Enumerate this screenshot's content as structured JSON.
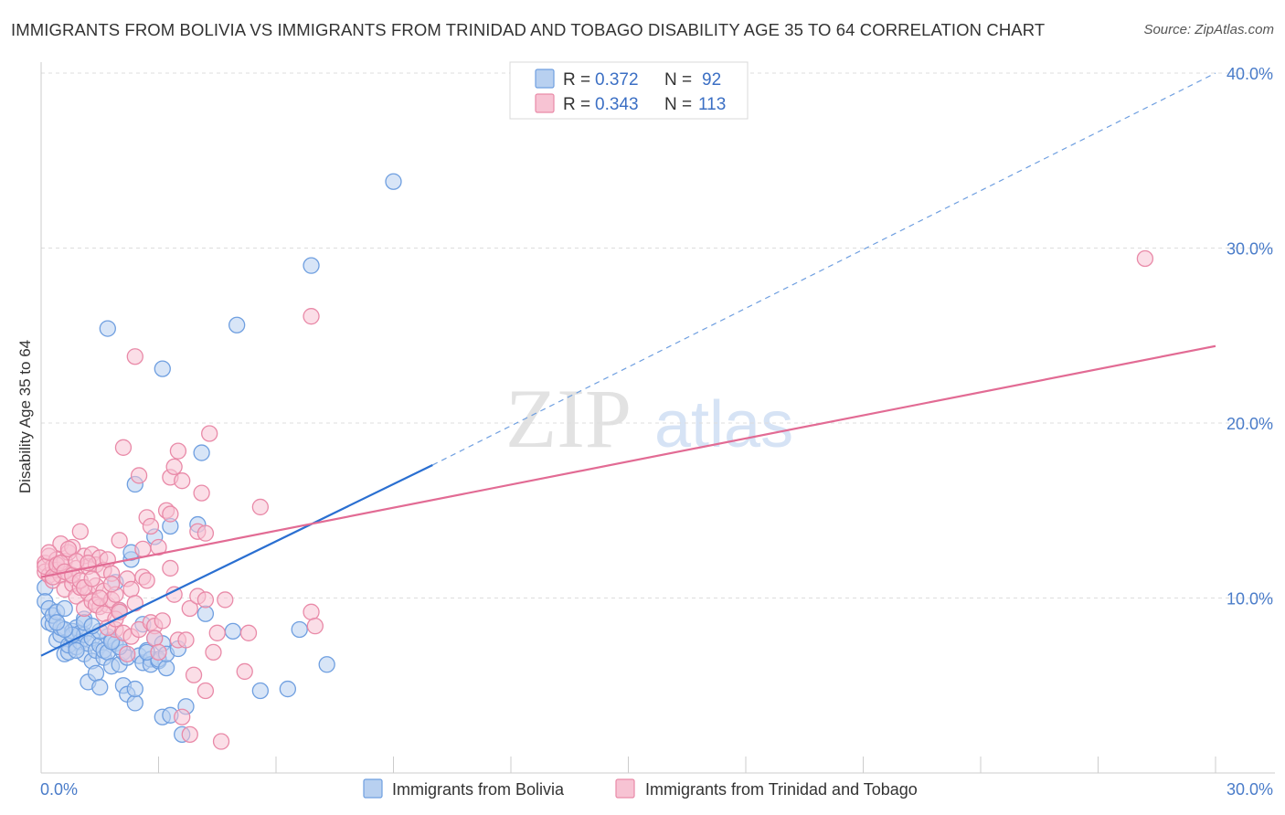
{
  "title": "IMMIGRANTS FROM BOLIVIA VS IMMIGRANTS FROM TRINIDAD AND TOBAGO DISABILITY AGE 35 TO 64 CORRELATION CHART",
  "source": "Source: ZipAtlas.com",
  "watermark": {
    "zip": "ZIP",
    "atlas": "atlas"
  },
  "colors": {
    "blue_fill": "#b8d0f0",
    "blue_stroke": "#6f9fe0",
    "blue_line": "#2a6fd1",
    "pink_fill": "#f7c3d3",
    "pink_stroke": "#e98aa8",
    "pink_line": "#e26b94",
    "grid": "#dddddd",
    "axis_label": "#4a7cc9"
  },
  "legend": {
    "series": [
      {
        "r_label": "R =",
        "r_value": "0.372",
        "n_label": "N =",
        "n_value": "92"
      },
      {
        "r_label": "R =",
        "r_value": "0.343",
        "n_label": "N =",
        "n_value": "113"
      }
    ]
  },
  "chart_data": {
    "type": "scatter",
    "title": "IMMIGRANTS FROM BOLIVIA VS IMMIGRANTS FROM TRINIDAD AND TOBAGO DISABILITY AGE 35 TO 64 CORRELATION CHART",
    "xlabel": "",
    "ylabel": "Disability Age 35 to 64",
    "xlim": [
      0,
      30
    ],
    "ylim": [
      0,
      40
    ],
    "x_tick_labels": [
      {
        "value": 0,
        "label": "0.0%"
      },
      {
        "value": 30,
        "label": "30.0%"
      }
    ],
    "y_tick_labels": [
      {
        "value": 10,
        "label": "10.0%"
      },
      {
        "value": 20,
        "label": "20.0%"
      },
      {
        "value": 30,
        "label": "30.0%"
      },
      {
        "value": 40,
        "label": "40.0%"
      }
    ],
    "grid": true,
    "legend_position": "top-center",
    "series": [
      {
        "name": "Immigrants from Bolivia",
        "r": 0.372,
        "n": 92,
        "trend": {
          "x0": 0,
          "y0": 6.7,
          "x1": 10,
          "y1": 17.6,
          "dashed_to_x": 30,
          "dashed_to_y": 40
        },
        "points": [
          [
            0.1,
            10.6
          ],
          [
            0.1,
            9.8
          ],
          [
            0.2,
            9.4
          ],
          [
            0.2,
            8.6
          ],
          [
            0.3,
            8.5
          ],
          [
            0.3,
            9.0
          ],
          [
            0.4,
            7.6
          ],
          [
            0.4,
            9.2
          ],
          [
            0.5,
            7.9
          ],
          [
            0.5,
            8.3
          ],
          [
            0.6,
            9.4
          ],
          [
            0.6,
            6.8
          ],
          [
            0.7,
            6.9
          ],
          [
            0.7,
            7.3
          ],
          [
            0.8,
            7.8
          ],
          [
            0.8,
            8.1
          ],
          [
            0.9,
            8.3
          ],
          [
            0.9,
            7.2
          ],
          [
            1.0,
            8.0
          ],
          [
            1.0,
            7.5
          ],
          [
            1.1,
            6.8
          ],
          [
            1.1,
            7.9
          ],
          [
            1.1,
            8.8
          ],
          [
            1.2,
            5.2
          ],
          [
            1.2,
            7.4
          ],
          [
            1.3,
            6.4
          ],
          [
            1.3,
            7.7
          ],
          [
            1.4,
            5.7
          ],
          [
            1.4,
            7.0
          ],
          [
            1.5,
            4.9
          ],
          [
            1.5,
            7.3
          ],
          [
            1.6,
            6.6
          ],
          [
            1.6,
            7.0
          ],
          [
            1.7,
            7.8
          ],
          [
            1.7,
            6.9
          ],
          [
            1.8,
            6.1
          ],
          [
            1.8,
            7.6
          ],
          [
            1.9,
            10.9
          ],
          [
            1.9,
            7.4
          ],
          [
            2.0,
            6.2
          ],
          [
            2.0,
            9.3
          ],
          [
            2.1,
            6.9
          ],
          [
            2.1,
            5.0
          ],
          [
            2.2,
            6.6
          ],
          [
            2.2,
            4.5
          ],
          [
            2.3,
            12.2
          ],
          [
            2.3,
            12.6
          ],
          [
            2.4,
            4.0
          ],
          [
            2.4,
            4.8
          ],
          [
            2.5,
            6.7
          ],
          [
            2.6,
            6.3
          ],
          [
            2.6,
            8.5
          ],
          [
            2.7,
            7.0
          ],
          [
            2.8,
            6.5
          ],
          [
            2.8,
            6.2
          ],
          [
            2.9,
            13.5
          ],
          [
            2.9,
            7.7
          ],
          [
            3.0,
            6.4
          ],
          [
            3.0,
            6.5
          ],
          [
            3.1,
            3.2
          ],
          [
            3.1,
            7.4
          ],
          [
            3.2,
            6.0
          ],
          [
            3.2,
            6.8
          ],
          [
            3.3,
            14.1
          ],
          [
            3.3,
            3.3
          ],
          [
            3.5,
            7.1
          ],
          [
            3.6,
            2.2
          ],
          [
            3.7,
            3.8
          ],
          [
            4.0,
            14.2
          ],
          [
            4.1,
            18.3
          ],
          [
            4.2,
            9.1
          ],
          [
            4.9,
            8.1
          ],
          [
            5.0,
            25.6
          ],
          [
            5.6,
            4.7
          ],
          [
            6.3,
            4.8
          ],
          [
            6.6,
            8.2
          ],
          [
            6.9,
            29.0
          ],
          [
            7.3,
            6.2
          ],
          [
            9.0,
            33.8
          ],
          [
            1.7,
            25.4
          ],
          [
            3.1,
            23.1
          ],
          [
            2.4,
            16.5
          ],
          [
            1.1,
            8.6
          ],
          [
            0.8,
            7.9
          ],
          [
            1.5,
            8.1
          ],
          [
            2.0,
            7.2
          ],
          [
            0.6,
            8.2
          ],
          [
            1.3,
            8.4
          ],
          [
            0.9,
            7.0
          ],
          [
            1.8,
            7.5
          ],
          [
            2.7,
            6.9
          ],
          [
            0.4,
            8.6
          ]
        ]
      },
      {
        "name": "Immigrants from Trinidad and Tobago",
        "r": 0.343,
        "n": 113,
        "trend": {
          "x0": 0,
          "y0": 11.2,
          "x1": 30,
          "y1": 24.4
        },
        "points": [
          [
            0.1,
            12.0
          ],
          [
            0.1,
            11.5
          ],
          [
            0.2,
            12.4
          ],
          [
            0.2,
            11.3
          ],
          [
            0.3,
            11.8
          ],
          [
            0.3,
            11.0
          ],
          [
            0.4,
            12.2
          ],
          [
            0.4,
            11.6
          ],
          [
            0.5,
            13.1
          ],
          [
            0.5,
            11.3
          ],
          [
            0.6,
            12.1
          ],
          [
            0.6,
            10.5
          ],
          [
            0.7,
            12.6
          ],
          [
            0.7,
            11.4
          ],
          [
            0.8,
            12.9
          ],
          [
            0.8,
            10.8
          ],
          [
            0.9,
            11.7
          ],
          [
            0.9,
            10.1
          ],
          [
            1.0,
            13.8
          ],
          [
            1.0,
            10.6
          ],
          [
            1.1,
            12.4
          ],
          [
            1.1,
            9.4
          ],
          [
            1.2,
            11.8
          ],
          [
            1.2,
            10.3
          ],
          [
            1.3,
            12.5
          ],
          [
            1.3,
            9.8
          ],
          [
            1.4,
            10.7
          ],
          [
            1.4,
            11.9
          ],
          [
            1.5,
            12.3
          ],
          [
            1.5,
            9.5
          ],
          [
            1.6,
            11.6
          ],
          [
            1.6,
            10.4
          ],
          [
            1.7,
            12.2
          ],
          [
            1.7,
            9.6
          ],
          [
            1.8,
            11.4
          ],
          [
            1.8,
            9.9
          ],
          [
            1.9,
            10.2
          ],
          [
            1.9,
            8.2
          ],
          [
            2.0,
            13.3
          ],
          [
            2.0,
            9.3
          ],
          [
            2.1,
            18.6
          ],
          [
            2.1,
            8.0
          ],
          [
            2.2,
            11.1
          ],
          [
            2.2,
            6.8
          ],
          [
            2.3,
            10.5
          ],
          [
            2.3,
            7.8
          ],
          [
            2.4,
            23.8
          ],
          [
            2.4,
            9.7
          ],
          [
            2.5,
            17.0
          ],
          [
            2.5,
            8.2
          ],
          [
            2.6,
            11.2
          ],
          [
            2.6,
            12.8
          ],
          [
            2.7,
            14.6
          ],
          [
            2.7,
            11.0
          ],
          [
            2.8,
            14.1
          ],
          [
            2.8,
            8.6
          ],
          [
            2.9,
            8.4
          ],
          [
            2.9,
            7.7
          ],
          [
            3.0,
            6.9
          ],
          [
            3.0,
            12.9
          ],
          [
            3.1,
            8.7
          ],
          [
            3.2,
            15.0
          ],
          [
            3.3,
            11.7
          ],
          [
            3.3,
            14.8
          ],
          [
            3.3,
            16.9
          ],
          [
            3.4,
            17.5
          ],
          [
            3.4,
            10.2
          ],
          [
            3.5,
            18.4
          ],
          [
            3.5,
            7.6
          ],
          [
            3.6,
            16.7
          ],
          [
            3.7,
            7.6
          ],
          [
            3.8,
            2.2
          ],
          [
            3.8,
            9.4
          ],
          [
            3.9,
            5.6
          ],
          [
            4.0,
            10.1
          ],
          [
            4.0,
            13.8
          ],
          [
            4.1,
            16.0
          ],
          [
            4.2,
            9.9
          ],
          [
            4.2,
            13.7
          ],
          [
            4.2,
            4.7
          ],
          [
            4.3,
            19.4
          ],
          [
            4.4,
            6.9
          ],
          [
            4.5,
            8.0
          ],
          [
            4.6,
            1.8
          ],
          [
            4.7,
            9.9
          ],
          [
            5.2,
            5.8
          ],
          [
            5.3,
            8.0
          ],
          [
            5.6,
            15.2
          ],
          [
            6.9,
            26.1
          ],
          [
            6.9,
            9.2
          ],
          [
            7.0,
            8.4
          ],
          [
            28.2,
            29.4
          ],
          [
            0.1,
            11.8
          ],
          [
            0.2,
            12.6
          ],
          [
            0.3,
            11.2
          ],
          [
            0.4,
            11.9
          ],
          [
            0.5,
            12.0
          ],
          [
            0.6,
            11.5
          ],
          [
            0.7,
            12.8
          ],
          [
            0.8,
            11.3
          ],
          [
            0.9,
            12.1
          ],
          [
            1.0,
            11.0
          ],
          [
            1.1,
            10.6
          ],
          [
            1.2,
            12.0
          ],
          [
            1.3,
            11.1
          ],
          [
            1.4,
            9.6
          ],
          [
            1.5,
            10.0
          ],
          [
            1.6,
            9.1
          ],
          [
            1.7,
            8.3
          ],
          [
            1.8,
            10.8
          ],
          [
            1.9,
            8.8
          ],
          [
            2.0,
            9.2
          ],
          [
            3.6,
            3.2
          ]
        ]
      }
    ]
  },
  "bottom_legend": [
    {
      "label": "Immigrants from Bolivia"
    },
    {
      "label": "Immigrants from Trinidad and Tobago"
    }
  ]
}
